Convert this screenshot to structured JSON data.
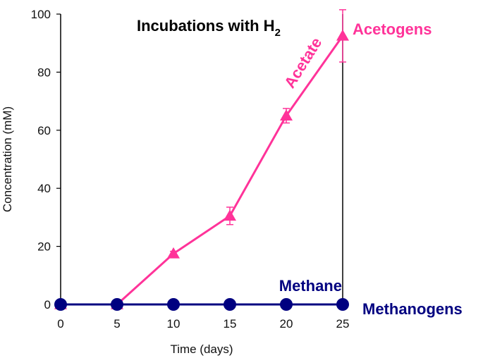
{
  "chart_data": {
    "type": "line",
    "title": "Incubations with H",
    "title_subscript": "2",
    "xlabel": "Time (days)",
    "ylabel": "Concentration (mM)",
    "xlim": [
      0,
      25
    ],
    "ylim": [
      0,
      100
    ],
    "x_ticks": [
      "0",
      "5",
      "10",
      "15",
      "20",
      "25"
    ],
    "y_ticks": [
      "0",
      "20",
      "40",
      "60",
      "80",
      "100"
    ],
    "grid": false,
    "x": [
      0,
      5,
      10,
      15,
      20,
      25
    ],
    "series": [
      {
        "name": "Acetate",
        "group_label": "Acetogens",
        "color": "#ff3399",
        "marker": "triangle",
        "values": [
          0,
          0,
          17.5,
          30.5,
          65,
          92.5
        ],
        "errors": [
          0,
          0,
          0.8,
          3,
          2.5,
          9
        ]
      },
      {
        "name": "Methane",
        "group_label": "Methanogens",
        "color": "#000080",
        "marker": "circle",
        "values": [
          0,
          0,
          0,
          0,
          0,
          0
        ],
        "errors": [
          0,
          0,
          0,
          0,
          0,
          0
        ]
      }
    ]
  }
}
